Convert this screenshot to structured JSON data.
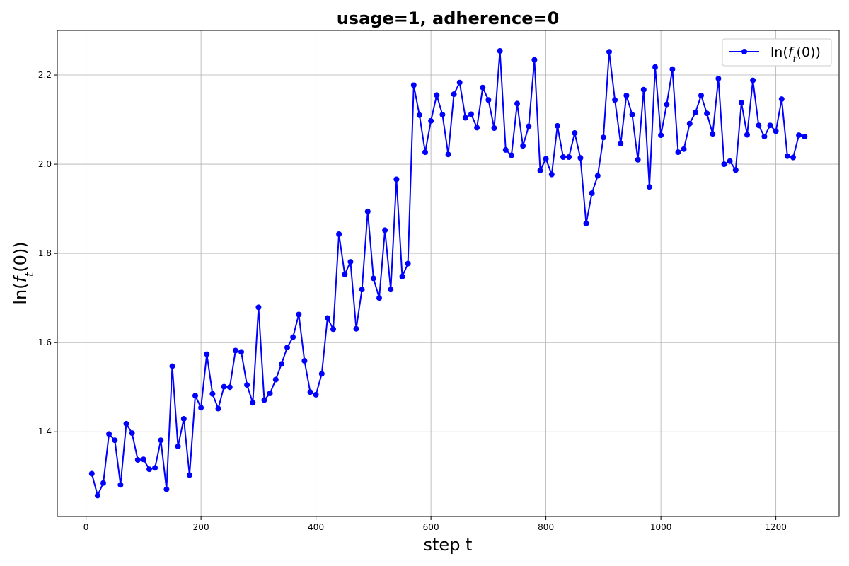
{
  "chart_data": {
    "type": "line",
    "title": "usage=1, adherence=0",
    "xlabel": "step t",
    "ylabel_parts": [
      "ln(",
      "f",
      "t",
      "(0))"
    ],
    "legend_parts": [
      "ln(",
      "f",
      "t",
      "(0))"
    ],
    "legend_position": "top-right",
    "grid": true,
    "xlim": [
      -50,
      1310
    ],
    "ylim": [
      1.21,
      2.3
    ],
    "xticks": [
      0,
      200,
      400,
      600,
      800,
      1000,
      1200
    ],
    "yticks": [
      1.4,
      1.6,
      1.8,
      2.0,
      2.2
    ],
    "colors": {
      "series": "#0000ff",
      "grid": "#b0b0b0",
      "axes": "#000000"
    },
    "series": [
      {
        "x": [
          10,
          20,
          30,
          40,
          50,
          60,
          70,
          80,
          90,
          100,
          110,
          120,
          130,
          140,
          150,
          160,
          170,
          180,
          190,
          200,
          210,
          220,
          230,
          240,
          250,
          260,
          270,
          280,
          290,
          300,
          310,
          320,
          330,
          340,
          350,
          360,
          370,
          380,
          390,
          400,
          410,
          420,
          430,
          440,
          450,
          460,
          470,
          480,
          490,
          500,
          510,
          520,
          530,
          540,
          550,
          560,
          570,
          580,
          590,
          600,
          610,
          620,
          630,
          640,
          650,
          660,
          670,
          680,
          690,
          700,
          710,
          720,
          730,
          740,
          750,
          760,
          770,
          780,
          790,
          800,
          810,
          820,
          830,
          840,
          850,
          860,
          870,
          880,
          890,
          900,
          910,
          920,
          930,
          940,
          950,
          960,
          970,
          980,
          990,
          1000,
          1010,
          1020,
          1030,
          1040,
          1050,
          1060,
          1070,
          1080,
          1090,
          1100,
          1110,
          1120,
          1130,
          1140,
          1150,
          1160,
          1170,
          1180,
          1190,
          1200,
          1210,
          1220,
          1230,
          1240,
          1250
        ],
        "y": [
          1.306,
          1.257,
          1.285,
          1.395,
          1.381,
          1.281,
          1.418,
          1.397,
          1.337,
          1.338,
          1.316,
          1.319,
          1.381,
          1.271,
          1.547,
          1.367,
          1.429,
          1.303,
          1.481,
          1.454,
          1.574,
          1.485,
          1.452,
          1.501,
          1.5,
          1.582,
          1.579,
          1.505,
          1.465,
          1.679,
          1.471,
          1.486,
          1.517,
          1.552,
          1.589,
          1.612,
          1.663,
          1.559,
          1.489,
          1.483,
          1.53,
          1.655,
          1.63,
          1.843,
          1.753,
          1.781,
          1.631,
          1.719,
          1.894,
          1.744,
          1.7,
          1.852,
          1.719,
          1.966,
          1.748,
          1.777,
          2.177,
          2.11,
          2.027,
          2.097,
          2.155,
          2.111,
          2.022,
          2.157,
          2.183,
          2.104,
          2.112,
          2.082,
          2.172,
          2.144,
          2.081,
          2.254,
          2.032,
          2.02,
          2.136,
          2.041,
          2.085,
          2.234,
          1.986,
          2.012,
          1.977,
          2.086,
          2.016,
          2.016,
          2.07,
          2.014,
          1.867,
          1.935,
          1.974,
          2.06,
          2.252,
          2.144,
          2.046,
          2.154,
          2.111,
          2.01,
          2.167,
          1.949,
          2.218,
          2.065,
          2.134,
          2.213,
          2.027,
          2.034,
          2.091,
          2.116,
          2.154,
          2.114,
          2.068,
          2.192,
          2.0,
          2.007,
          1.987,
          2.138,
          2.066,
          2.188,
          2.087,
          2.062,
          2.087,
          2.074,
          2.146,
          2.018,
          2.015,
          2.065,
          2.062
        ]
      }
    ]
  }
}
